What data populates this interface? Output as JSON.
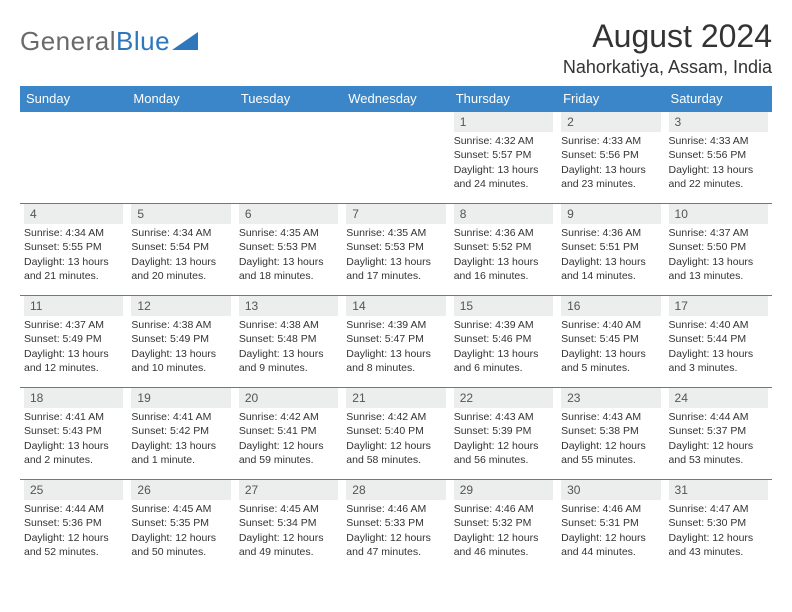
{
  "brand": {
    "part1": "General",
    "part2": "Blue"
  },
  "title": "August 2024",
  "location": "Nahorkatiya, Assam, India",
  "colors": {
    "header_bg": "#3a86c8",
    "header_text": "#ffffff",
    "daynum_bg": "#eceded",
    "body_text": "#333333",
    "rule": "#3a86c8"
  },
  "weekdays": [
    "Sunday",
    "Monday",
    "Tuesday",
    "Wednesday",
    "Thursday",
    "Friday",
    "Saturday"
  ],
  "weeks": [
    [
      null,
      null,
      null,
      null,
      {
        "d": "1",
        "sr": "4:32 AM",
        "ss": "5:57 PM",
        "dl": "13 hours and 24 minutes."
      },
      {
        "d": "2",
        "sr": "4:33 AM",
        "ss": "5:56 PM",
        "dl": "13 hours and 23 minutes."
      },
      {
        "d": "3",
        "sr": "4:33 AM",
        "ss": "5:56 PM",
        "dl": "13 hours and 22 minutes."
      }
    ],
    [
      {
        "d": "4",
        "sr": "4:34 AM",
        "ss": "5:55 PM",
        "dl": "13 hours and 21 minutes."
      },
      {
        "d": "5",
        "sr": "4:34 AM",
        "ss": "5:54 PM",
        "dl": "13 hours and 20 minutes."
      },
      {
        "d": "6",
        "sr": "4:35 AM",
        "ss": "5:53 PM",
        "dl": "13 hours and 18 minutes."
      },
      {
        "d": "7",
        "sr": "4:35 AM",
        "ss": "5:53 PM",
        "dl": "13 hours and 17 minutes."
      },
      {
        "d": "8",
        "sr": "4:36 AM",
        "ss": "5:52 PM",
        "dl": "13 hours and 16 minutes."
      },
      {
        "d": "9",
        "sr": "4:36 AM",
        "ss": "5:51 PM",
        "dl": "13 hours and 14 minutes."
      },
      {
        "d": "10",
        "sr": "4:37 AM",
        "ss": "5:50 PM",
        "dl": "13 hours and 13 minutes."
      }
    ],
    [
      {
        "d": "11",
        "sr": "4:37 AM",
        "ss": "5:49 PM",
        "dl": "13 hours and 12 minutes."
      },
      {
        "d": "12",
        "sr": "4:38 AM",
        "ss": "5:49 PM",
        "dl": "13 hours and 10 minutes."
      },
      {
        "d": "13",
        "sr": "4:38 AM",
        "ss": "5:48 PM",
        "dl": "13 hours and 9 minutes."
      },
      {
        "d": "14",
        "sr": "4:39 AM",
        "ss": "5:47 PM",
        "dl": "13 hours and 8 minutes."
      },
      {
        "d": "15",
        "sr": "4:39 AM",
        "ss": "5:46 PM",
        "dl": "13 hours and 6 minutes."
      },
      {
        "d": "16",
        "sr": "4:40 AM",
        "ss": "5:45 PM",
        "dl": "13 hours and 5 minutes."
      },
      {
        "d": "17",
        "sr": "4:40 AM",
        "ss": "5:44 PM",
        "dl": "13 hours and 3 minutes."
      }
    ],
    [
      {
        "d": "18",
        "sr": "4:41 AM",
        "ss": "5:43 PM",
        "dl": "13 hours and 2 minutes."
      },
      {
        "d": "19",
        "sr": "4:41 AM",
        "ss": "5:42 PM",
        "dl": "13 hours and 1 minute."
      },
      {
        "d": "20",
        "sr": "4:42 AM",
        "ss": "5:41 PM",
        "dl": "12 hours and 59 minutes."
      },
      {
        "d": "21",
        "sr": "4:42 AM",
        "ss": "5:40 PM",
        "dl": "12 hours and 58 minutes."
      },
      {
        "d": "22",
        "sr": "4:43 AM",
        "ss": "5:39 PM",
        "dl": "12 hours and 56 minutes."
      },
      {
        "d": "23",
        "sr": "4:43 AM",
        "ss": "5:38 PM",
        "dl": "12 hours and 55 minutes."
      },
      {
        "d": "24",
        "sr": "4:44 AM",
        "ss": "5:37 PM",
        "dl": "12 hours and 53 minutes."
      }
    ],
    [
      {
        "d": "25",
        "sr": "4:44 AM",
        "ss": "5:36 PM",
        "dl": "12 hours and 52 minutes."
      },
      {
        "d": "26",
        "sr": "4:45 AM",
        "ss": "5:35 PM",
        "dl": "12 hours and 50 minutes."
      },
      {
        "d": "27",
        "sr": "4:45 AM",
        "ss": "5:34 PM",
        "dl": "12 hours and 49 minutes."
      },
      {
        "d": "28",
        "sr": "4:46 AM",
        "ss": "5:33 PM",
        "dl": "12 hours and 47 minutes."
      },
      {
        "d": "29",
        "sr": "4:46 AM",
        "ss": "5:32 PM",
        "dl": "12 hours and 46 minutes."
      },
      {
        "d": "30",
        "sr": "4:46 AM",
        "ss": "5:31 PM",
        "dl": "12 hours and 44 minutes."
      },
      {
        "d": "31",
        "sr": "4:47 AM",
        "ss": "5:30 PM",
        "dl": "12 hours and 43 minutes."
      }
    ]
  ],
  "labels": {
    "sunrise": "Sunrise: ",
    "sunset": "Sunset: ",
    "daylight": "Daylight: "
  }
}
